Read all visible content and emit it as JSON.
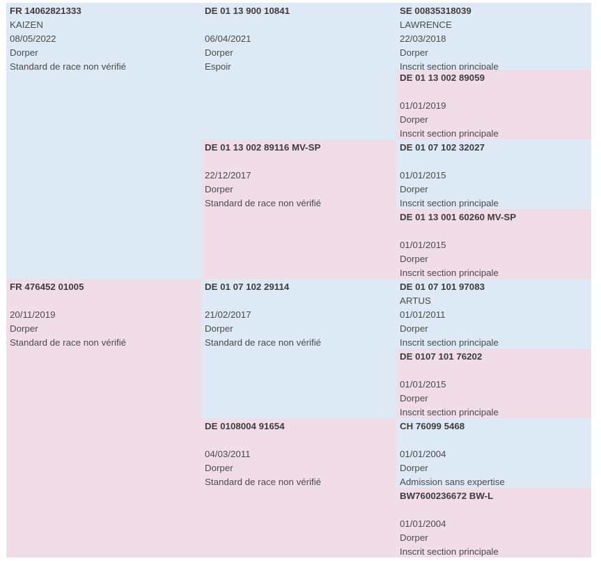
{
  "pedigree": {
    "generation1": [
      {
        "sex": "male",
        "reg": "FR 14062821333",
        "name": "KAIZEN",
        "date": "08/05/2022",
        "breed": "Dorper",
        "status": "Standard de race non vérifié"
      },
      {
        "sex": "female",
        "reg": "FR 476452 01005",
        "name": "",
        "date": "20/11/2019",
        "breed": "Dorper",
        "status": "Standard de race non vérifié"
      }
    ],
    "generation2": [
      {
        "sex": "male",
        "reg": "DE 01 13 900 10841",
        "name": "",
        "date": "06/04/2021",
        "breed": "Dorper",
        "status": "Espoir"
      },
      {
        "sex": "female",
        "reg": "DE 01 13 002 89116 MV-SP",
        "name": "",
        "date": "22/12/2017",
        "breed": "Dorper",
        "status": "Standard de race non vérifié"
      },
      {
        "sex": "male",
        "reg": "DE 01 07 102 29114",
        "name": "",
        "date": "21/02/2017",
        "breed": "Dorper",
        "status": "Standard de race non vérifié"
      },
      {
        "sex": "female",
        "reg": "DE 0108004 91654",
        "name": "",
        "date": "04/03/2011",
        "breed": "Dorper",
        "status": "Standard de race non vérifié"
      }
    ],
    "generation3": [
      {
        "sex": "male",
        "reg": "SE 00835318039",
        "name": "LAWRENCE",
        "date": "22/03/2018",
        "breed": "Dorper",
        "status": "Inscrit section principale"
      },
      {
        "sex": "female",
        "reg": "DE 01 13 002 89059",
        "name": "",
        "date": "01/01/2019",
        "breed": "Dorper",
        "status": "Inscrit section principale"
      },
      {
        "sex": "male",
        "reg": "DE 01 07 102 32027",
        "name": "",
        "date": "01/01/2015",
        "breed": "Dorper",
        "status": "Inscrit section principale"
      },
      {
        "sex": "female",
        "reg": "DE 01 13 001 60260 MV-SP",
        "name": "",
        "date": "01/01/2015",
        "breed": "Dorper",
        "status": "Inscrit section principale"
      },
      {
        "sex": "male",
        "reg": "DE 01 07 101 97083",
        "name": "ARTUS",
        "date": "01/01/2011",
        "breed": "Dorper",
        "status": "Inscrit section principale"
      },
      {
        "sex": "female",
        "reg": "DE 0107 101 76202",
        "name": "",
        "date": "01/01/2015",
        "breed": "Dorper",
        "status": "Inscrit section principale"
      },
      {
        "sex": "male",
        "reg": "CH 76099 5468",
        "name": "",
        "date": "01/01/2004",
        "breed": "Dorper",
        "status": "Admission sans expertise"
      },
      {
        "sex": "female",
        "reg": "BW7600236672 BW-L",
        "name": "",
        "date": "01/01/2004",
        "breed": "Dorper",
        "status": "Inscrit section principale"
      }
    ]
  }
}
